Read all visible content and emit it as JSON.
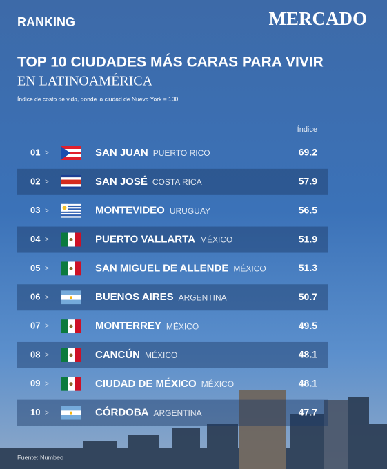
{
  "header": {
    "section": "RANKING",
    "brand": "MERCADO",
    "title": "TOP 10 CIUDADES MÁS CARAS PARA VIVIR",
    "title_line2": "EN LATINOAMÉRICA",
    "subtitle": "Índice de costo de vida, donde la ciudad de Nueva York = 100"
  },
  "table": {
    "value_header": "Índice",
    "row_marker": ">",
    "rows": [
      {
        "rank": "01",
        "city": "SAN JUAN",
        "country": "PUERTO RICO",
        "value": 69.2
      },
      {
        "rank": "02",
        "city": "SAN JOSÉ",
        "country": "COSTA RICA",
        "value": 57.9
      },
      {
        "rank": "03",
        "city": "MONTEVIDEO",
        "country": "URUGUAY",
        "value": 56.5
      },
      {
        "rank": "04",
        "city": "PUERTO VALLARTA",
        "country": "MÉXICO",
        "value": 51.9
      },
      {
        "rank": "05",
        "city": "SAN MIGUEL DE ALLENDE",
        "country": "MÉXICO",
        "value": 51.3
      },
      {
        "rank": "06",
        "city": "BUENOS AIRES",
        "country": "ARGENTINA",
        "value": 50.7
      },
      {
        "rank": "07",
        "city": "MONTERREY",
        "country": "MÉXICO",
        "value": 49.5
      },
      {
        "rank": "08",
        "city": "CANCÚN",
        "country": "MÉXICO",
        "value": 48.1
      },
      {
        "rank": "09",
        "city": "CIUDAD DE MÉXICO",
        "country": "MÉXICO",
        "value": 48.1
      },
      {
        "rank": "10",
        "city": "CÓRDOBA",
        "country": "ARGENTINA",
        "value": 47.7
      }
    ]
  },
  "footer": {
    "source": "Fuente: Numbeo"
  }
}
